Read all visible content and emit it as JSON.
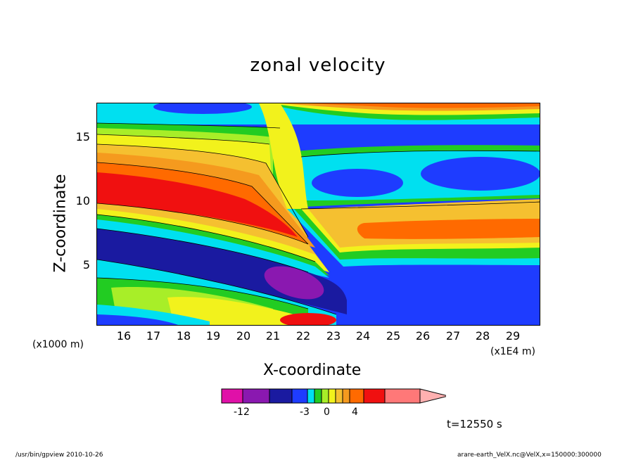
{
  "chart_data": {
    "type": "heatmap",
    "title": "zonal velocity",
    "xlabel": "X-coordinate",
    "ylabel": "Z-coordinate",
    "x_unit_left": "(x1000 m)",
    "x_unit_right": "(x1E4 m)",
    "xlim": [
      15.2,
      30.0
    ],
    "ylim": [
      0.4,
      17.6
    ],
    "x_ticks": [
      "16",
      "17",
      "18",
      "19",
      "20",
      "21",
      "22",
      "23",
      "24",
      "25",
      "26",
      "27",
      "28",
      "29"
    ],
    "y_ticks": [
      "5",
      "10",
      "15"
    ],
    "colorbar": {
      "colors": [
        "#e010a8",
        "#8a18b0",
        "#1a1aa0",
        "#1e3cff",
        "#00e0f0",
        "#22cc22",
        "#a8ee28",
        "#f2f21c",
        "#f5c030",
        "#f59a1e",
        "#ff6a00",
        "#f01010",
        "#ff7878",
        "#ffb0b0"
      ],
      "tick_labels": [
        "-12",
        "-3",
        "0",
        "4"
      ]
    },
    "time_label": "t=12550 s"
  },
  "footer": {
    "left": "/usr/bin/gpview   2010-10-26",
    "right": "arare-earth_VelX.nc@VelX,x=150000:300000"
  }
}
